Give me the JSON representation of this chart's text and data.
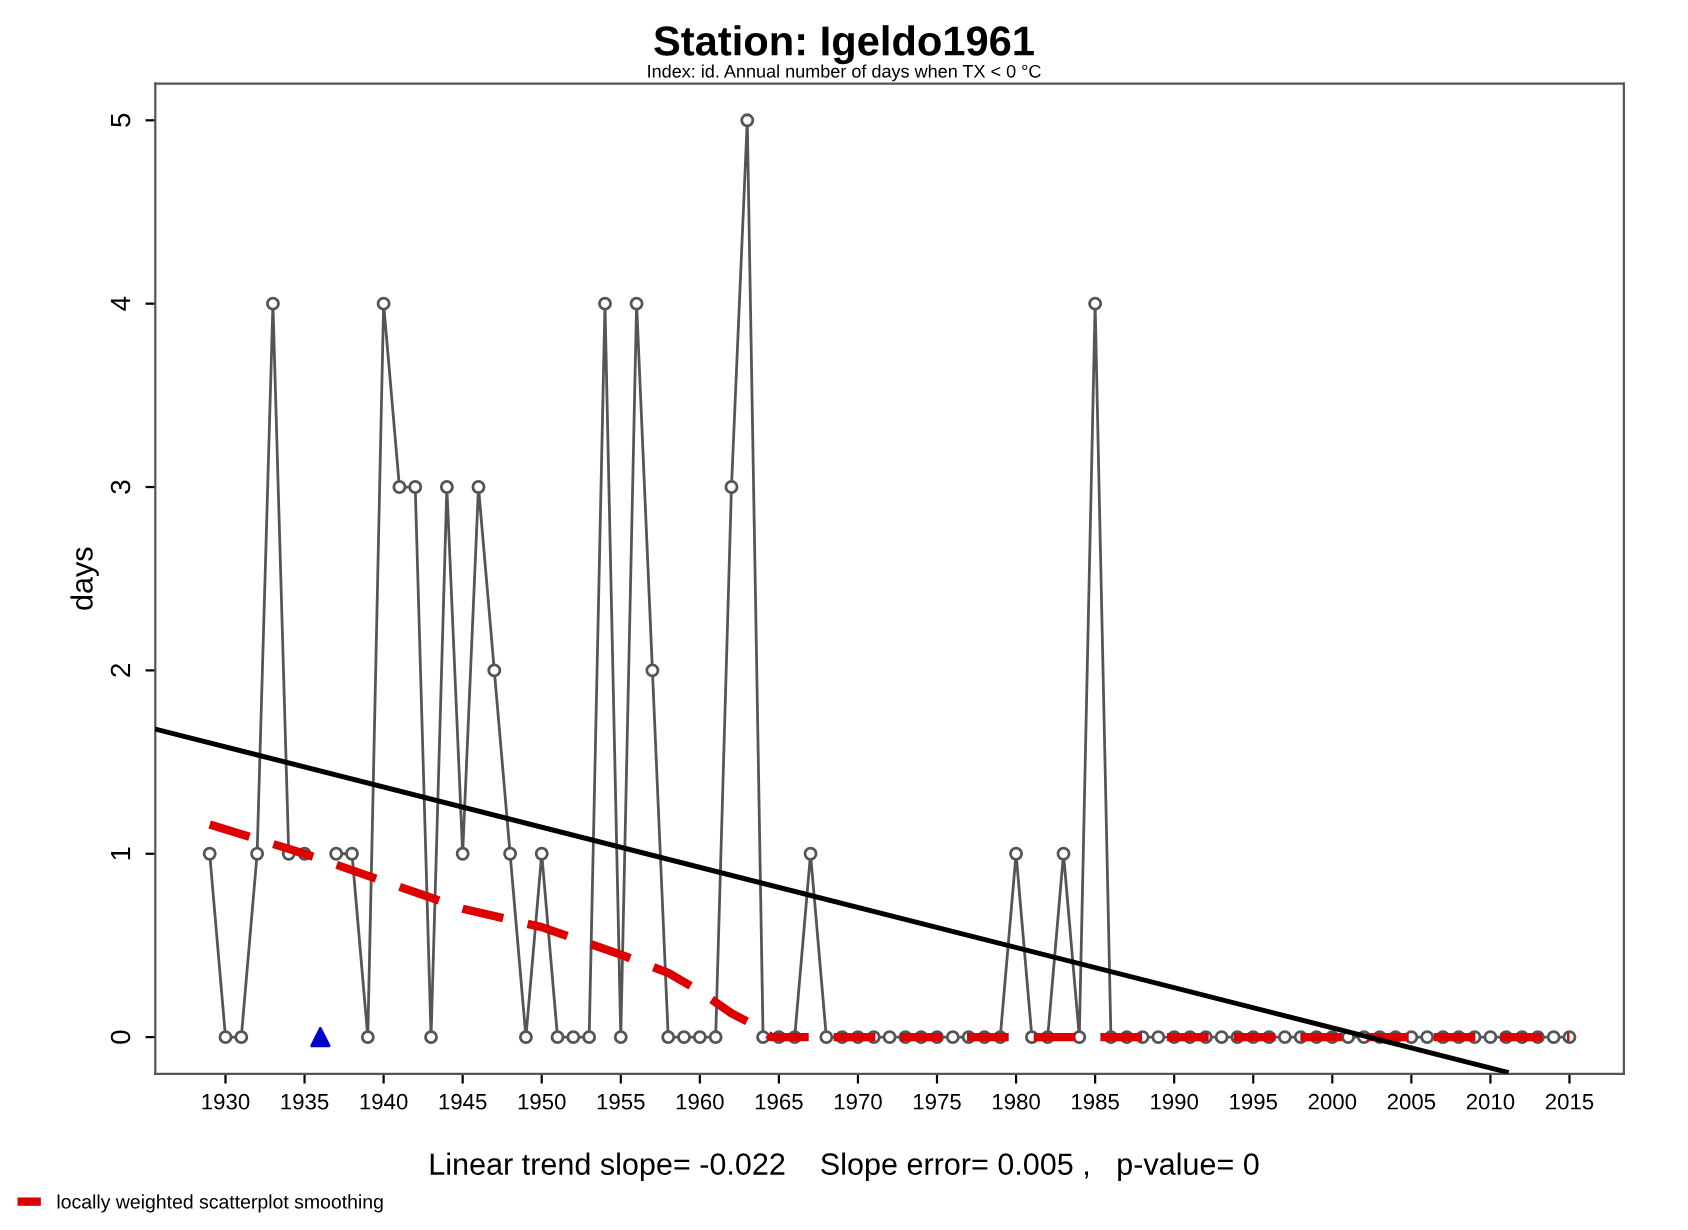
{
  "chart_data": {
    "type": "line",
    "title": "Station: Igeldo1961",
    "subtitle": "Index: id. Annual number of days when TX < 0 °C",
    "ylabel": "days",
    "x": [
      1929,
      1930,
      1931,
      1932,
      1933,
      1934,
      1935,
      1936,
      1937,
      1938,
      1939,
      1940,
      1941,
      1942,
      1943,
      1944,
      1945,
      1946,
      1947,
      1948,
      1949,
      1950,
      1951,
      1952,
      1953,
      1954,
      1955,
      1956,
      1957,
      1958,
      1959,
      1960,
      1961,
      1962,
      1963,
      1964,
      1965,
      1966,
      1967,
      1968,
      1969,
      1970,
      1971,
      1972,
      1973,
      1974,
      1975,
      1976,
      1977,
      1978,
      1979,
      1980,
      1981,
      1982,
      1983,
      1984,
      1985,
      1986,
      1987,
      1988,
      1989,
      1990,
      1991,
      1992,
      1993,
      1994,
      1995,
      1996,
      1997,
      1998,
      1999,
      2000,
      2001,
      2002,
      2003,
      2004,
      2005,
      2006,
      2007,
      2008,
      2009,
      2010,
      2011,
      2012,
      2013,
      2014,
      2015
    ],
    "series": [
      {
        "color": "#555555",
        "marker": "circle",
        "line_style": "solid",
        "values": [
          1,
          0,
          0,
          1,
          4,
          1,
          1,
          null,
          1,
          1,
          0,
          4,
          3,
          3,
          0,
          3,
          1,
          3,
          2,
          1,
          0,
          1,
          0,
          0,
          0,
          4,
          0,
          4,
          2,
          0,
          0,
          0,
          0,
          3,
          5,
          0,
          0,
          0,
          1,
          0,
          0,
          0,
          0,
          0,
          0,
          0,
          0,
          0,
          0,
          0,
          0,
          1,
          0,
          0,
          1,
          0,
          4,
          0,
          0,
          0,
          0,
          0,
          0,
          0,
          0,
          0,
          0,
          0,
          0,
          0,
          0,
          0,
          0,
          0,
          0,
          0,
          0,
          0,
          0,
          0,
          0,
          0,
          0,
          0,
          0,
          0,
          0
        ]
      },
      {
        "type": "scatter",
        "color": "#0000cc",
        "marker": "triangle",
        "x": [
          1936
        ],
        "values": [
          0
        ]
      },
      {
        "type": "line",
        "name": "locally weighted scatterplot smoothing",
        "color": "#dd0000",
        "marker": "none",
        "line_style": "dashed",
        "x": [
          1929,
          1935,
          1940,
          1945,
          1950,
          1955,
          1958,
          1960,
          1962,
          1964,
          1964.5,
          1970,
          1980,
          1990,
          2000,
          2010,
          2015
        ],
        "values": [
          1.16,
          1.0,
          0.85,
          0.7,
          0.6,
          0.45,
          0.35,
          0.25,
          0.13,
          0.04,
          0,
          0,
          0,
          0,
          0,
          0,
          0
        ]
      },
      {
        "type": "line",
        "color": "#000000",
        "marker": "none",
        "line_style": "solid",
        "x": [
          1925.56,
          2011
        ],
        "values": [
          1.68,
          -0.19
        ]
      }
    ],
    "xlim": [
      1925.56,
      2018.44
    ],
    "xticks": [
      1930,
      1935,
      1940,
      1945,
      1950,
      1955,
      1960,
      1965,
      1970,
      1975,
      1980,
      1985,
      1990,
      1995,
      2000,
      2005,
      2010,
      2015
    ],
    "ylim": [
      -0.2,
      5.2
    ],
    "yticks": [
      0,
      1,
      2,
      3,
      4,
      5
    ],
    "grid": false,
    "legend": "bottom left",
    "annotations": [
      "Linear trend slope= -0.022    Slope error= 0.005 ,   p-value= 0"
    ]
  }
}
